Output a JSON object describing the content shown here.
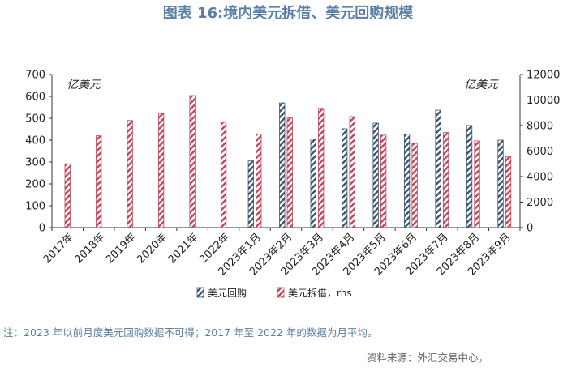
{
  "chart_data": {
    "type": "bar",
    "title": "图表 16:境内美元拆借、美元回购规模",
    "categories": [
      "2017年",
      "2018年",
      "2019年",
      "2020年",
      "2021年",
      "2022年",
      "2023年1月",
      "2023年2月",
      "2023年3月",
      "2023年4月",
      "2023年5月",
      "2023年6月",
      "2023年7月",
      "2023年8月",
      "2023年9月"
    ],
    "left_axis": {
      "unit_label": "亿美元",
      "min": 0,
      "max": 700,
      "step": 100
    },
    "right_axis": {
      "unit_label": "亿美元",
      "min": 0,
      "max": 12000,
      "step": 2000
    },
    "series": [
      {
        "name": "美元回购",
        "axis": "left",
        "color": "#3d5573",
        "values": [
          null,
          null,
          null,
          null,
          null,
          null,
          305,
          570,
          405,
          452,
          478,
          428,
          537,
          467,
          400
        ]
      },
      {
        "name": "美元拆借，rhs",
        "axis": "right",
        "color": "#c0485a",
        "values": [
          5000,
          7200,
          8400,
          8950,
          10350,
          8250,
          7330,
          8600,
          9350,
          8700,
          7250,
          6600,
          7450,
          6800,
          5550
        ]
      }
    ],
    "legend_position": "bottom",
    "grid": false
  },
  "note": "注：2023 年以前月度美元回购数据不可得；2017 年至 2022 年的数据为月平均。",
  "source": "资料来源：外汇交易中心，"
}
